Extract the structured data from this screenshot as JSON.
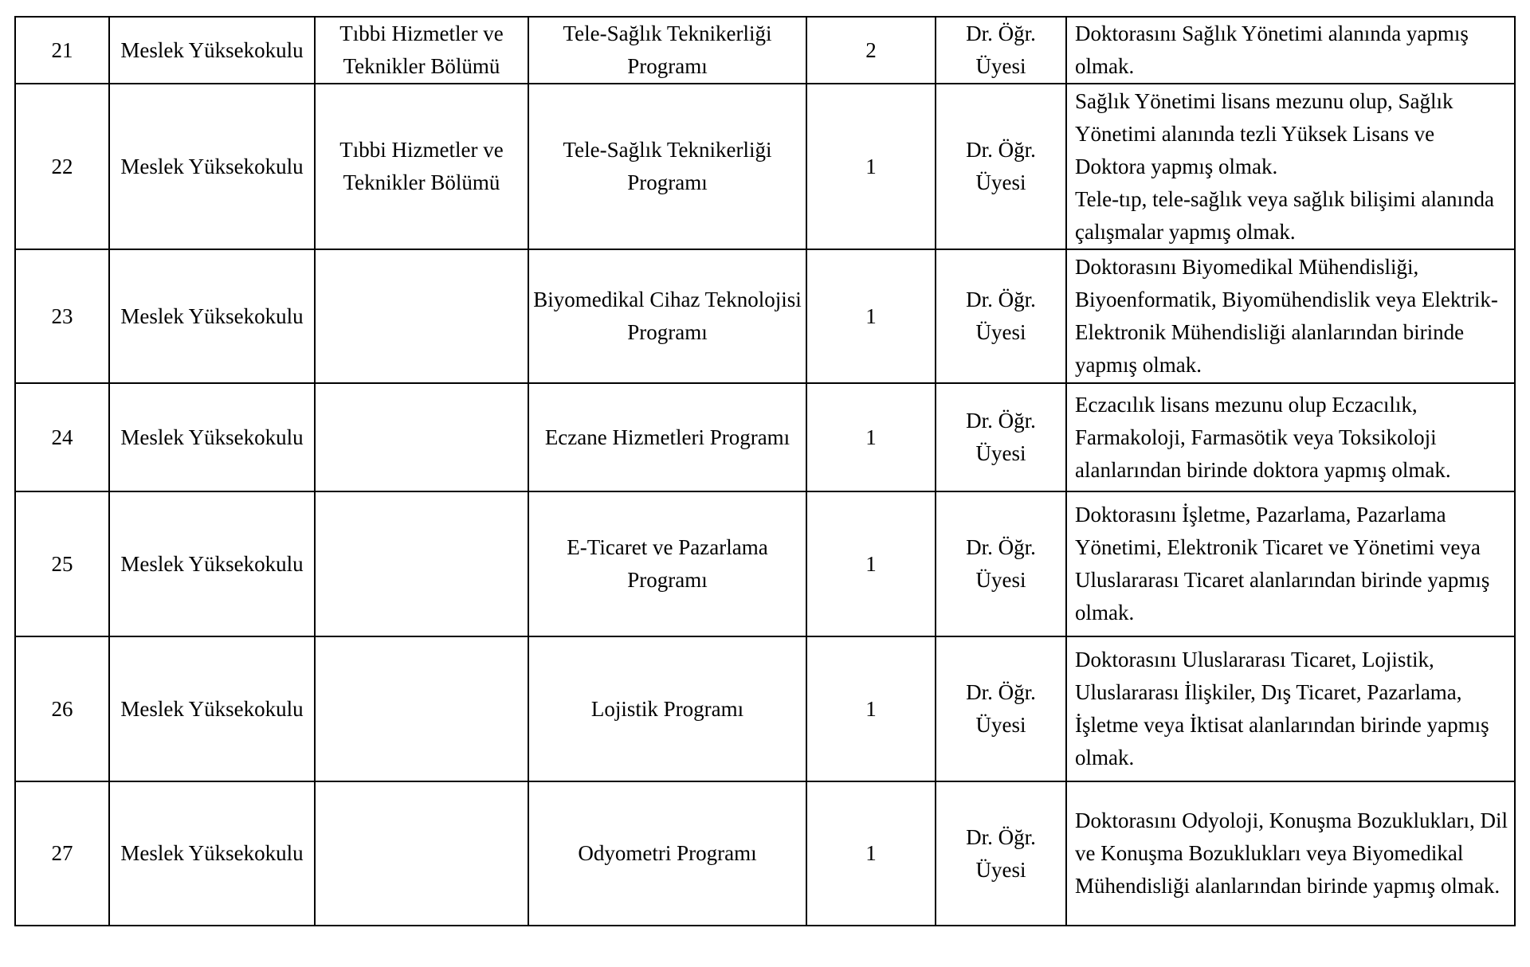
{
  "rows": [
    {
      "no": "21",
      "unit": "Meslek Yüksekokulu",
      "department": "Tıbbi Hizmetler ve Teknikler Bölümü",
      "program": "Tele-Sağlık Teknikerliği Programı",
      "count": "2",
      "title": "Dr. Öğr. Üyesi",
      "requirement": "Doktorasını Sağlık Yönetimi alanında yapmış olmak."
    },
    {
      "no": "22",
      "unit": "Meslek Yüksekokulu",
      "department": "Tıbbi Hizmetler ve Teknikler Bölümü",
      "program": "Tele-Sağlık Teknikerliği Programı",
      "count": "1",
      "title": "Dr. Öğr. Üyesi",
      "requirement": "Sağlık Yönetimi lisans mezunu olup, Sağlık Yönetimi alanında tezli Yüksek Lisans ve Doktora yapmış olmak.\nTele-tıp, tele-sağlık veya sağlık bilişimi alanında çalışmalar yapmış olmak."
    },
    {
      "no": "23",
      "unit": "Meslek Yüksekokulu",
      "department": "",
      "program": "Biyomedikal Cihaz Teknolojisi Programı",
      "count": "1",
      "title": "Dr. Öğr. Üyesi",
      "requirement": "Doktorasını Biyomedikal Mühendisliği, Biyoenformatik, Biyomühendislik veya Elektrik- Elektronik Mühendisliği alanlarından birinde yapmış olmak."
    },
    {
      "no": "24",
      "unit": "Meslek Yüksekokulu",
      "department": "",
      "program": "Eczane Hizmetleri Programı",
      "count": "1",
      "title": "Dr. Öğr. Üyesi",
      "requirement": "Eczacılık lisans mezunu olup Eczacılık, Farmakoloji, Farmasötik veya Toksikoloji alanlarından birinde doktora yapmış olmak."
    },
    {
      "no": "25",
      "unit": "Meslek Yüksekokulu",
      "department": "",
      "program": "E-Ticaret ve Pazarlama Programı",
      "count": "1",
      "title": "Dr. Öğr. Üyesi",
      "requirement": "Doktorasını İşletme, Pazarlama, Pazarlama Yönetimi, Elektronik Ticaret ve Yönetimi veya Uluslararası Ticaret alanlarından birinde yapmış olmak."
    },
    {
      "no": "26",
      "unit": "Meslek Yüksekokulu",
      "department": "",
      "program": "Lojistik Programı",
      "count": "1",
      "title": "Dr. Öğr. Üyesi",
      "requirement": "Doktorasını Uluslararası Ticaret, Lojistik, Uluslararası İlişkiler, Dış Ticaret, Pazarlama, İşletme veya İktisat alanlarından birinde yapmış olmak."
    },
    {
      "no": "27",
      "unit": "Meslek Yüksekokulu",
      "department": "",
      "program": "Odyometri Programı",
      "count": "1",
      "title": "Dr. Öğr. Üyesi",
      "requirement": "Doktorasını Odyoloji, Konuşma Bozuklukları, Dil ve Konuşma Bozuklukları veya Biyomedikal Mühendisliği alanlarından birinde yapmış olmak."
    }
  ]
}
